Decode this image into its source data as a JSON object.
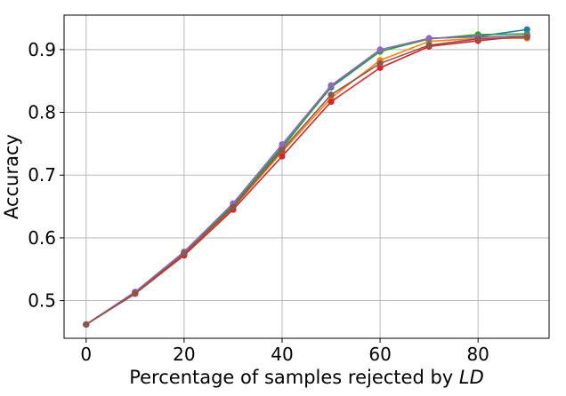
{
  "chart_data": {
    "type": "line",
    "xlabel": "Percentage of samples rejected by ",
    "xlabel_italic": "LD",
    "ylabel": "Accuracy",
    "xlim": [
      -4.5,
      94.5
    ],
    "ylim": [
      0.44,
      0.955
    ],
    "xticks": [
      0,
      20,
      40,
      60,
      80
    ],
    "yticks": [
      0.5,
      0.6,
      0.7,
      0.8,
      0.9
    ],
    "grid": true,
    "x": [
      0,
      10,
      20,
      30,
      40,
      50,
      60,
      70,
      80,
      90
    ],
    "series": [
      {
        "color": "#1f77b4",
        "values": [
          0.462,
          0.513,
          0.576,
          0.652,
          0.745,
          0.84,
          0.897,
          0.918,
          0.921,
          0.932
        ]
      },
      {
        "color": "#ff7f0e",
        "values": [
          0.462,
          0.512,
          0.574,
          0.648,
          0.737,
          0.823,
          0.883,
          0.913,
          0.918,
          0.918
        ]
      },
      {
        "color": "#2ca02c",
        "values": [
          0.462,
          0.513,
          0.576,
          0.653,
          0.743,
          0.842,
          0.897,
          0.917,
          0.924,
          0.925
        ]
      },
      {
        "color": "#d62728",
        "values": [
          0.462,
          0.511,
          0.572,
          0.645,
          0.73,
          0.817,
          0.871,
          0.905,
          0.914,
          0.922
        ]
      },
      {
        "color": "#9467bd",
        "values": [
          0.462,
          0.514,
          0.578,
          0.655,
          0.749,
          0.843,
          0.9,
          0.918,
          0.92,
          0.922
        ]
      },
      {
        "color": "#8c564b",
        "values": [
          0.462,
          0.512,
          0.575,
          0.649,
          0.74,
          0.828,
          0.878,
          0.907,
          0.917,
          0.92
        ]
      }
    ]
  }
}
